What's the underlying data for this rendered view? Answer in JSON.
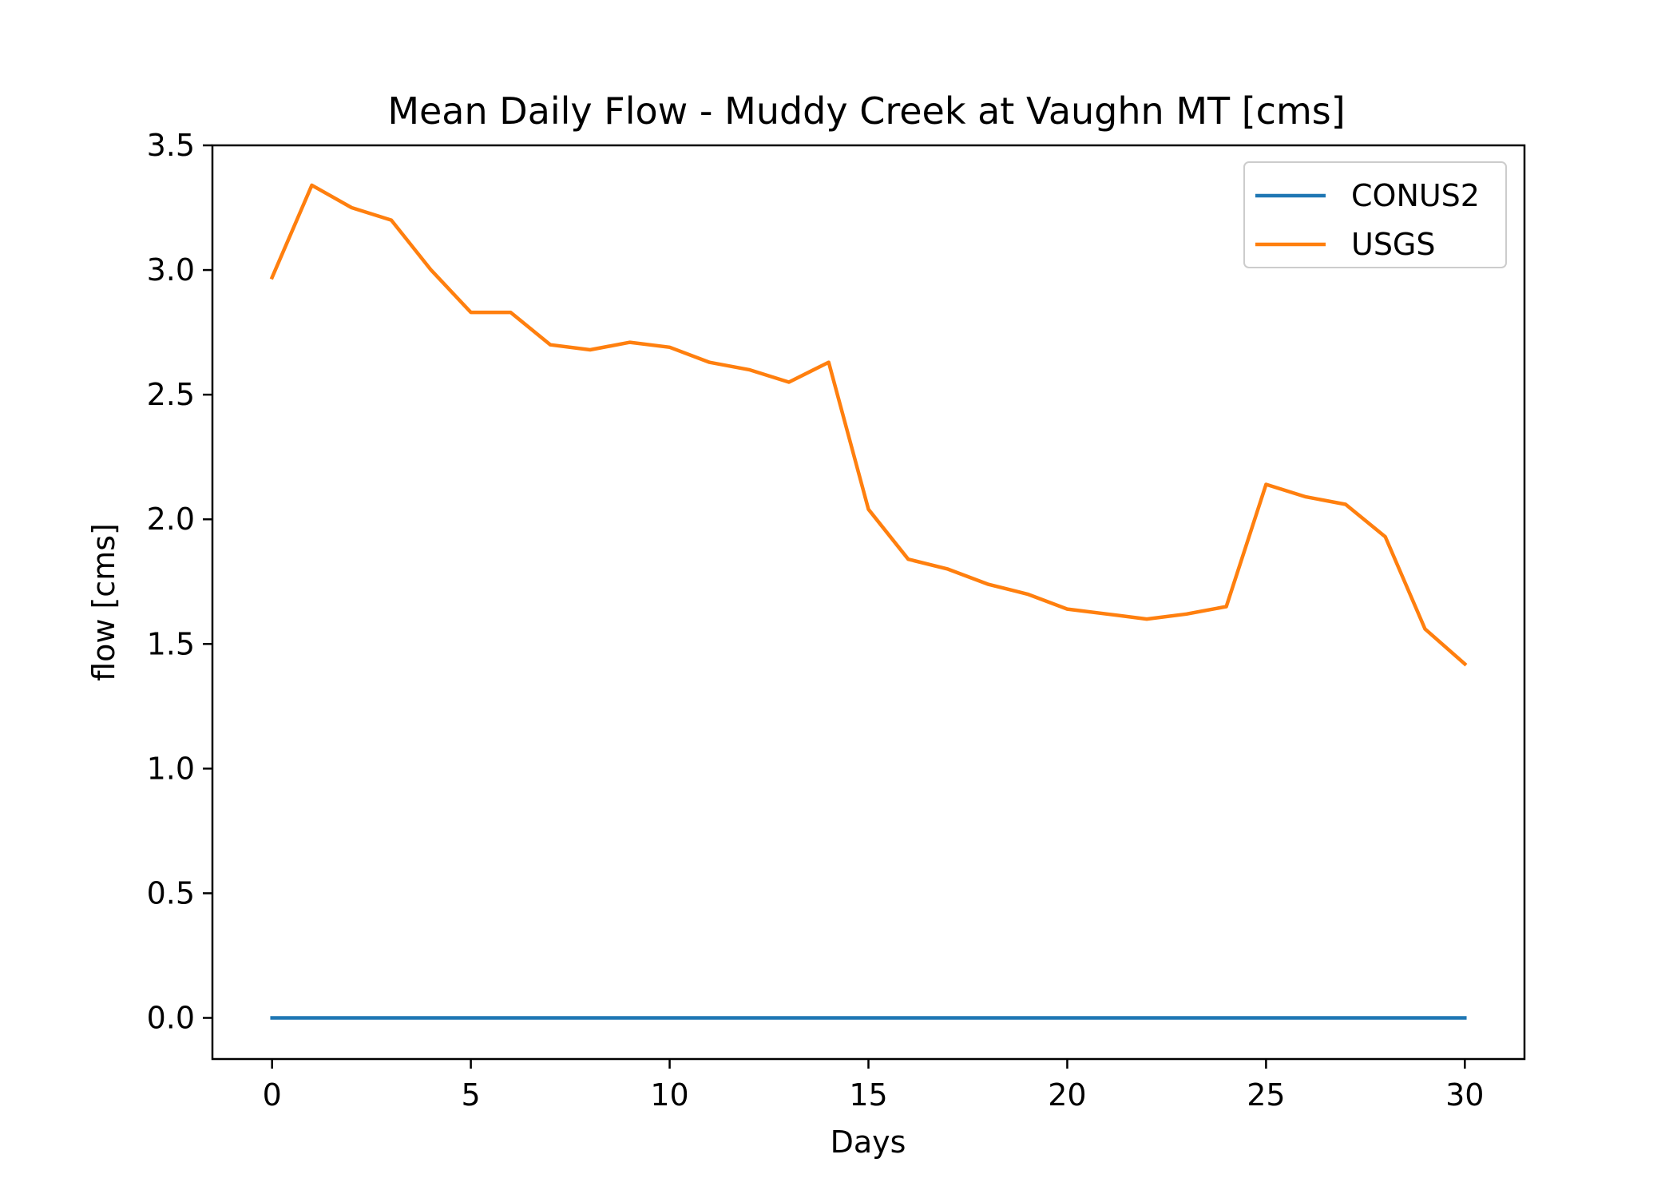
{
  "chart_data": {
    "type": "line",
    "title": "Mean Daily Flow - Muddy Creek at Vaughn MT [cms]",
    "xlabel": "Days",
    "ylabel": "flow [cms]",
    "xlim": [
      -1.5,
      31.5
    ],
    "ylim": [
      -0.165,
      3.5
    ],
    "xticks": [
      0,
      5,
      10,
      15,
      20,
      25,
      30
    ],
    "xtick_labels": [
      "0",
      "5",
      "10",
      "15",
      "20",
      "25",
      "30"
    ],
    "yticks": [
      0.0,
      0.5,
      1.0,
      1.5,
      2.0,
      2.5,
      3.0,
      3.5
    ],
    "ytick_labels": [
      "0.0",
      "0.5",
      "1.0",
      "1.5",
      "2.0",
      "2.5",
      "3.0",
      "3.5"
    ],
    "grid": false,
    "legend_position": "top-right",
    "x": [
      0,
      1,
      2,
      3,
      4,
      5,
      6,
      7,
      8,
      9,
      10,
      11,
      12,
      13,
      14,
      15,
      16,
      17,
      18,
      19,
      20,
      21,
      22,
      23,
      24,
      25,
      26,
      27,
      28,
      29,
      30
    ],
    "series": [
      {
        "name": "CONUS2",
        "color": "#1f77b4",
        "values": [
          0,
          0,
          0,
          0,
          0,
          0,
          0,
          0,
          0,
          0,
          0,
          0,
          0,
          0,
          0,
          0,
          0,
          0,
          0,
          0,
          0,
          0,
          0,
          0,
          0,
          0,
          0,
          0,
          0,
          0,
          0
        ]
      },
      {
        "name": "USGS",
        "color": "#ff7f0e",
        "values": [
          2.97,
          3.34,
          3.25,
          3.2,
          3.0,
          2.83,
          2.83,
          2.7,
          2.68,
          2.71,
          2.69,
          2.63,
          2.6,
          2.55,
          2.63,
          2.04,
          1.84,
          1.8,
          1.74,
          1.7,
          1.64,
          1.62,
          1.6,
          1.62,
          1.65,
          2.14,
          2.09,
          2.06,
          1.93,
          1.56,
          1.42
        ]
      }
    ]
  }
}
